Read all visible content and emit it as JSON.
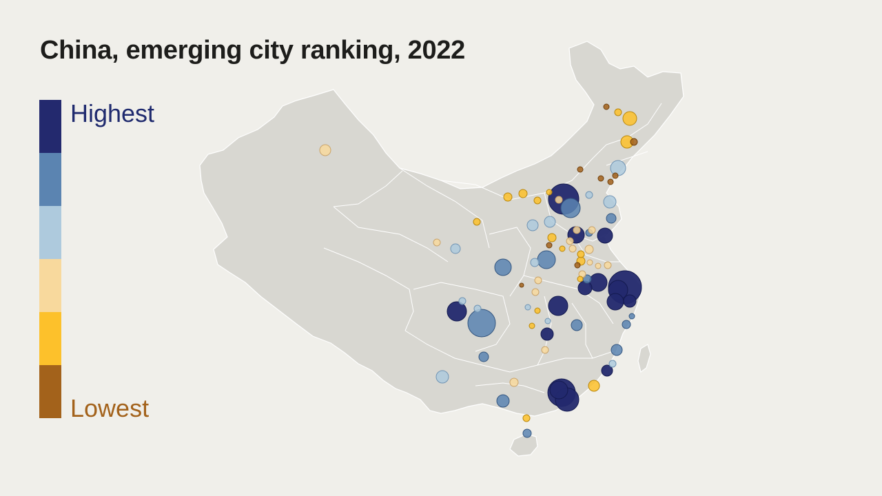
{
  "title": "China, emerging city ranking, 2022",
  "legend": {
    "high_label": "Highest",
    "low_label": "Lowest",
    "scale": [
      {
        "rank_class": 6,
        "color": "#23296e"
      },
      {
        "rank_class": 5,
        "color": "#5b84b1"
      },
      {
        "rank_class": 4,
        "color": "#aecadd"
      },
      {
        "rank_class": 3,
        "color": "#f8d99d"
      },
      {
        "rank_class": 2,
        "color": "#fdc12b"
      },
      {
        "rank_class": 1,
        "color": "#a3621b"
      }
    ]
  },
  "colors": {
    "background": "#f0efea",
    "land": "#d8d7d1",
    "borders": "#ffffff"
  }
}
